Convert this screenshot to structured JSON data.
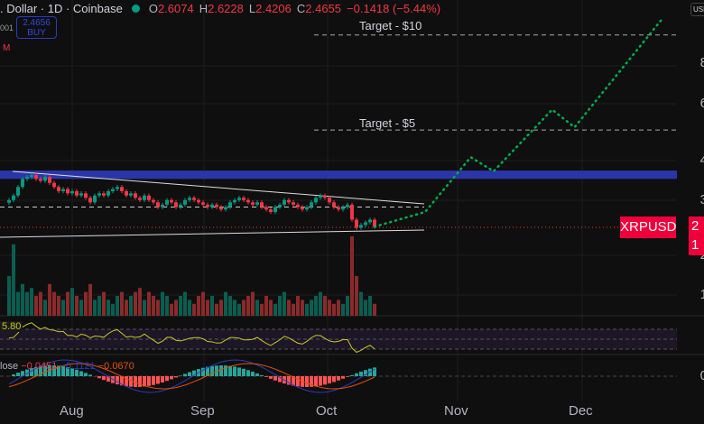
{
  "header": {
    "title": ". Dollar · 1D · Coinbase",
    "o_label": "O",
    "o": "2.6074",
    "h_label": "H",
    "h": "2.6228",
    "l_label": "L",
    "l": "2.4206",
    "c_label": "C",
    "c": "2.4655",
    "change": "−0.1418 (−5.44%)"
  },
  "buy": {
    "price": "2.4656",
    "label": "BUY"
  },
  "side_labels": {
    "a": "001",
    "b": "M"
  },
  "symbol_tag": "XRPUSD",
  "price_tag": [
    "2",
    "1"
  ],
  "currency_button": "USD",
  "axis": {
    "price_ticks": [
      "8",
      "6",
      "4",
      "3",
      "2",
      "1"
    ],
    "macd_tick": "0"
  },
  "months": [
    "Aug",
    "Sep",
    "Oct",
    "Nov",
    "Dec"
  ],
  "targets": [
    {
      "label": "Target - $10",
      "price": 10
    },
    {
      "label": "Target - $5",
      "price": 5
    }
  ],
  "rsi": {
    "value": "5.80"
  },
  "macd": {
    "label": "lose",
    "v1": "−0.0451",
    "v2": "−0.1121",
    "v3": "−0.0670"
  },
  "colors": {
    "up": "#089981",
    "down": "#f23645",
    "zone": "#2a35a8",
    "proj": "#00b050"
  },
  "chart_data": {
    "type": "candlestick",
    "scale": "log",
    "zone": [
      3.5,
      3.72
    ],
    "dashed_level": 2.85,
    "closes": [
      3.0,
      3.1,
      3.3,
      3.5,
      3.55,
      3.6,
      3.5,
      3.45,
      3.55,
      3.4,
      3.3,
      3.2,
      3.25,
      3.15,
      3.2,
      3.1,
      3.15,
      3.05,
      2.95,
      3.1,
      3.15,
      3.1,
      3.2,
      3.25,
      3.3,
      3.2,
      3.1,
      3.15,
      3.05,
      3.0,
      3.1,
      3.0,
      2.95,
      2.85,
      2.9,
      3.0,
      2.95,
      2.85,
      2.9,
      3.0,
      3.05,
      3.0,
      2.95,
      2.9,
      2.85,
      2.9,
      2.85,
      2.8,
      2.85,
      2.95,
      3.0,
      3.05,
      3.0,
      2.95,
      2.9,
      2.95,
      2.85,
      2.8,
      2.75,
      2.85,
      2.9,
      3.0,
      2.95,
      2.9,
      2.85,
      2.8,
      2.85,
      2.95,
      3.05,
      3.1,
      3.05,
      2.95,
      2.85,
      2.8,
      2.85,
      2.9,
      2.6,
      2.45,
      2.5,
      2.55,
      2.6,
      2.47
    ],
    "volumes": [
      0.5,
      0.9,
      0.3,
      0.4,
      0.3,
      0.35,
      0.25,
      0.3,
      0.2,
      0.4,
      0.3,
      0.25,
      0.2,
      0.3,
      0.35,
      0.25,
      0.2,
      0.3,
      0.4,
      0.2,
      0.25,
      0.3,
      0.2,
      0.15,
      0.25,
      0.3,
      0.2,
      0.25,
      0.3,
      0.35,
      0.2,
      0.3,
      0.25,
      0.2,
      0.3,
      0.25,
      0.15,
      0.2,
      0.25,
      0.3,
      0.2,
      0.15,
      0.25,
      0.3,
      0.2,
      0.25,
      0.15,
      0.2,
      0.3,
      0.25,
      0.2,
      0.15,
      0.2,
      0.25,
      0.3,
      0.2,
      0.15,
      0.25,
      0.2,
      0.15,
      0.25,
      0.3,
      0.2,
      0.15,
      0.25,
      0.2,
      0.15,
      0.2,
      0.25,
      0.3,
      0.25,
      0.2,
      0.15,
      0.2,
      0.15,
      0.25,
      1.0,
      0.5,
      0.3,
      0.2,
      0.25,
      0.15
    ],
    "projection": [
      [
        85,
        2.75
      ],
      [
        96,
        4.1
      ],
      [
        101.5,
        3.7
      ],
      [
        115.6,
        5.8
      ],
      [
        121,
        5.1
      ],
      [
        142,
        11.2
      ]
    ]
  }
}
